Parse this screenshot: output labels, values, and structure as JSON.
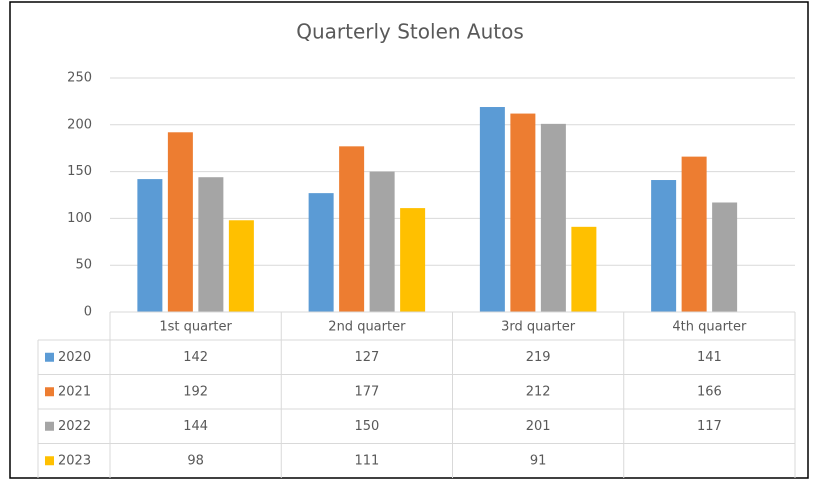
{
  "chart_data": {
    "type": "bar",
    "title": "Quarterly Stolen Autos",
    "categories": [
      "1st quarter",
      "2nd quarter",
      "3rd quarter",
      "4th quarter"
    ],
    "series": [
      {
        "name": "2020",
        "color": "#5b9bd5",
        "values": [
          142,
          127,
          219,
          141
        ]
      },
      {
        "name": "2021",
        "color": "#ed7d31",
        "values": [
          192,
          177,
          212,
          166
        ]
      },
      {
        "name": "2022",
        "color": "#a5a5a5",
        "values": [
          144,
          150,
          201,
          117
        ]
      },
      {
        "name": "2023",
        "color": "#ffc000",
        "values": [
          98,
          111,
          91,
          null
        ]
      }
    ],
    "ylim": [
      0,
      250
    ],
    "yticks": [
      0,
      50,
      100,
      150,
      200,
      250
    ],
    "grid": true,
    "data_table": true
  }
}
